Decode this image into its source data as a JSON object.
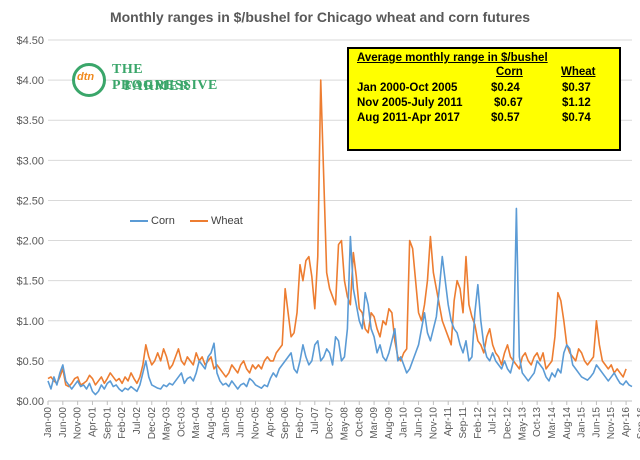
{
  "chart_data": {
    "type": "line",
    "title": "Monthly ranges in $/bushel for Chicago wheat and corn futures",
    "xlabel": "",
    "ylabel": "",
    "ylim": [
      0,
      4.5
    ],
    "y_ticks": [
      "$0.00",
      "$0.50",
      "$1.00",
      "$1.50",
      "$2.00",
      "$2.50",
      "$3.00",
      "$3.50",
      "$4.00",
      "$4.50"
    ],
    "x_tick_labels": [
      "Jan-00",
      "Jun-00",
      "Nov-00",
      "Apr-01",
      "Sep-01",
      "Feb-02",
      "Jul-02",
      "Dec-02",
      "May-03",
      "Oct-03",
      "Mar-04",
      "Aug-04",
      "Jan-05",
      "Jun-05",
      "Nov-05",
      "Apr-06",
      "Sep-06",
      "Feb-07",
      "Jul-07",
      "Dec-07",
      "May-08",
      "Oct-08",
      "Mar-09",
      "Aug-09",
      "Jan-10",
      "Jun-10",
      "Nov-10",
      "Apr-11",
      "Sep-11",
      "Feb-12",
      "Jul-12",
      "Dec-12",
      "May-13",
      "Oct-13",
      "Mar-14",
      "Aug-14",
      "Jan-15",
      "Jun-15",
      "Nov-15",
      "Apr-16",
      "Sep-16",
      "Feb-17"
    ],
    "x_start": "Jan-00",
    "x_end": "Apr-17",
    "grid": "horizontal",
    "legend_position": "middle-left",
    "series": [
      {
        "name": "Corn",
        "color": "#5b9bd5",
        "values": [
          0.25,
          0.15,
          0.3,
          0.2,
          0.35,
          0.45,
          0.25,
          0.2,
          0.15,
          0.2,
          0.25,
          0.18,
          0.2,
          0.15,
          0.22,
          0.12,
          0.08,
          0.12,
          0.2,
          0.15,
          0.22,
          0.25,
          0.18,
          0.2,
          0.15,
          0.12,
          0.16,
          0.14,
          0.18,
          0.15,
          0.12,
          0.2,
          0.35,
          0.5,
          0.3,
          0.2,
          0.18,
          0.16,
          0.15,
          0.2,
          0.18,
          0.22,
          0.2,
          0.25,
          0.3,
          0.35,
          0.22,
          0.28,
          0.3,
          0.25,
          0.35,
          0.5,
          0.45,
          0.4,
          0.55,
          0.6,
          0.72,
          0.35,
          0.25,
          0.2,
          0.22,
          0.18,
          0.25,
          0.2,
          0.15,
          0.2,
          0.22,
          0.18,
          0.28,
          0.25,
          0.2,
          0.18,
          0.16,
          0.2,
          0.18,
          0.28,
          0.35,
          0.3,
          0.4,
          0.45,
          0.5,
          0.55,
          0.6,
          0.4,
          0.35,
          0.5,
          0.7,
          0.55,
          0.45,
          0.5,
          0.7,
          0.75,
          0.5,
          0.55,
          0.65,
          0.6,
          0.45,
          0.8,
          0.75,
          0.5,
          0.55,
          0.9,
          2.05,
          1.4,
          1.2,
          1.0,
          0.9,
          1.35,
          1.2,
          0.9,
          0.8,
          0.6,
          0.7,
          0.55,
          0.5,
          0.6,
          0.75,
          0.9,
          0.5,
          0.55,
          0.45,
          0.35,
          0.4,
          0.5,
          0.6,
          0.7,
          0.9,
          1.1,
          0.85,
          0.75,
          0.9,
          1.05,
          1.4,
          1.8,
          1.5,
          1.2,
          1.0,
          0.9,
          0.85,
          0.7,
          0.6,
          0.75,
          0.5,
          0.55,
          1.1,
          1.45,
          1.0,
          0.7,
          0.55,
          0.5,
          0.6,
          0.5,
          0.45,
          0.4,
          0.5,
          0.4,
          0.35,
          0.5,
          2.4,
          0.55,
          0.35,
          0.3,
          0.25,
          0.3,
          0.35,
          0.5,
          0.45,
          0.4,
          0.3,
          0.25,
          0.35,
          0.3,
          0.4,
          0.35,
          0.6,
          0.7,
          0.65,
          0.45,
          0.4,
          0.35,
          0.3,
          0.28,
          0.26,
          0.3,
          0.35,
          0.45,
          0.4,
          0.35,
          0.3,
          0.25,
          0.3,
          0.35,
          0.28,
          0.22,
          0.2,
          0.25,
          0.2,
          0.18
        ]
      },
      {
        "name": "Wheat",
        "color": "#ed7d31",
        "values": [
          0.28,
          0.3,
          0.25,
          0.22,
          0.3,
          0.4,
          0.2,
          0.18,
          0.22,
          0.28,
          0.3,
          0.2,
          0.22,
          0.25,
          0.32,
          0.28,
          0.2,
          0.25,
          0.3,
          0.22,
          0.28,
          0.35,
          0.3,
          0.25,
          0.28,
          0.22,
          0.3,
          0.25,
          0.35,
          0.28,
          0.22,
          0.3,
          0.45,
          0.7,
          0.55,
          0.45,
          0.5,
          0.6,
          0.5,
          0.65,
          0.55,
          0.4,
          0.45,
          0.55,
          0.65,
          0.5,
          0.45,
          0.55,
          0.5,
          0.45,
          0.6,
          0.5,
          0.55,
          0.45,
          0.5,
          0.55,
          0.4,
          0.45,
          0.4,
          0.35,
          0.3,
          0.35,
          0.45,
          0.4,
          0.35,
          0.45,
          0.5,
          0.4,
          0.35,
          0.45,
          0.4,
          0.45,
          0.4,
          0.5,
          0.55,
          0.5,
          0.5,
          0.6,
          0.65,
          0.7,
          1.4,
          1.1,
          0.8,
          0.85,
          1.1,
          1.7,
          1.5,
          1.75,
          1.8,
          1.55,
          1.15,
          1.8,
          4.0,
          2.8,
          1.6,
          1.4,
          1.3,
          1.2,
          1.95,
          2.0,
          1.5,
          1.3,
          1.2,
          1.85,
          1.55,
          1.15,
          1.1,
          0.9,
          0.85,
          1.1,
          1.05,
          0.9,
          0.8,
          1.0,
          0.95,
          1.15,
          1.1,
          0.75,
          0.55,
          0.5,
          0.6,
          0.65,
          2.0,
          1.9,
          1.5,
          1.1,
          1.0,
          1.2,
          1.5,
          2.05,
          1.6,
          1.4,
          1.2,
          1.0,
          0.9,
          0.8,
          0.7,
          1.25,
          1.5,
          1.4,
          1.1,
          1.8,
          1.2,
          1.05,
          0.95,
          0.75,
          0.7,
          0.6,
          0.8,
          0.9,
          0.7,
          0.6,
          0.55,
          0.45,
          0.6,
          0.7,
          0.55,
          0.5,
          0.45,
          0.4,
          0.55,
          0.6,
          0.5,
          0.45,
          0.55,
          0.6,
          0.5,
          0.6,
          0.4,
          0.45,
          0.5,
          0.8,
          1.35,
          1.25,
          1.0,
          0.7,
          0.6,
          0.55,
          0.5,
          0.65,
          0.6,
          0.5,
          0.45,
          0.5,
          0.55,
          1.0,
          0.7,
          0.5,
          0.45,
          0.4,
          0.45,
          0.35,
          0.4,
          0.35,
          0.3,
          0.4
        ]
      }
    ]
  },
  "stats_box": {
    "header": "Average monthly range in $/bushel",
    "col_corn": "Corn",
    "col_wheat": "Wheat",
    "rows": [
      {
        "period": "Jan 2000-Oct 2005",
        "corn": "$0.24",
        "wheat": "$0.37"
      },
      {
        "period": "Nov 2005-July 2011",
        "corn": "$0.67",
        "wheat": "$1.12"
      },
      {
        "period": "Aug 2011-Apr 2017",
        "corn": "$0.57",
        "wheat": "$0.74"
      }
    ]
  },
  "logo": {
    "dtn": "dtn",
    "line1": "THE PROGRESSIVE",
    "line2": "FARMER"
  }
}
